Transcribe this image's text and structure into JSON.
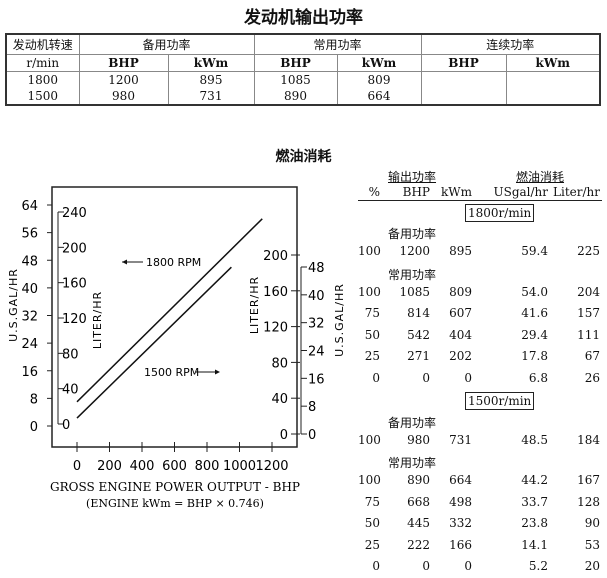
{
  "title": "发动机输出功率",
  "output_table": {
    "speed_header": "发动机转速",
    "speed_unit": "r/min",
    "groups": [
      "备用功率",
      "常用功率",
      "连续功率"
    ],
    "sub": [
      "BHP",
      "kWm",
      "BHP",
      "kWm",
      "BHP",
      "kWm"
    ],
    "rows": [
      [
        "1800",
        "1200",
        "895",
        "1085",
        "809",
        "",
        ""
      ],
      [
        "1500",
        "980",
        "731",
        "890",
        "664",
        "",
        ""
      ]
    ]
  },
  "fuel_title": "燃油消耗",
  "fuel_table": {
    "group_output": "输出功率",
    "group_fuel": "燃油消耗",
    "cols": [
      "%",
      "BHP",
      "kWm",
      "USgal/hr",
      "Liter/hr"
    ],
    "sections": [
      {
        "speed": "1800r/min",
        "standby_label": "备用功率",
        "standby": [
          [
            "100",
            "1200",
            "895",
            "59.4",
            "225"
          ]
        ],
        "prime_label": "常用功率",
        "prime": [
          [
            "100",
            "1085",
            "809",
            "54.0",
            "204"
          ],
          [
            "75",
            "814",
            "607",
            "41.6",
            "157"
          ],
          [
            "50",
            "542",
            "404",
            "29.4",
            "111"
          ],
          [
            "25",
            "271",
            "202",
            "17.8",
            "67"
          ],
          [
            "0",
            "0",
            "0",
            "6.8",
            "26"
          ]
        ]
      },
      {
        "speed": "1500r/min",
        "standby_label": "备用功率",
        "standby": [
          [
            "100",
            "980",
            "731",
            "48.5",
            "184"
          ]
        ],
        "prime_label": "常用功率",
        "prime": [
          [
            "100",
            "890",
            "664",
            "44.2",
            "167"
          ],
          [
            "75",
            "668",
            "498",
            "33.7",
            "128"
          ],
          [
            "50",
            "445",
            "332",
            "23.8",
            "90"
          ],
          [
            "25",
            "222",
            "166",
            "14.1",
            "53"
          ],
          [
            "0",
            "0",
            "0",
            "5.2",
            "20"
          ]
        ]
      }
    ]
  },
  "chart_data": {
    "type": "line",
    "xlabel": "GROSS ENGINE POWER OUTPUT - BHP",
    "xlabel2": "(ENGINE  kWm = BHP  ×  0.746)",
    "x_ticks": [
      0,
      200,
      400,
      600,
      800,
      1000,
      1200
    ],
    "left_gal_label": "U.S.GAL/HR",
    "left_gal_ticks": [
      0,
      8,
      16,
      24,
      32,
      40,
      48,
      56,
      64
    ],
    "left_liter_label": "LITER/HR",
    "left_liter_ticks": [
      0,
      40,
      80,
      120,
      160,
      200,
      240
    ],
    "right_liter_label": "LITER/HR",
    "right_liter_ticks": [
      0,
      40,
      80,
      120,
      160,
      200
    ],
    "right_gal_label": "U.S.GAL/HR",
    "right_gal_ticks": [
      0,
      8,
      16,
      24,
      32,
      40,
      48
    ],
    "series": [
      {
        "name": "1800 RPM",
        "x": [
          0,
          1140
        ],
        "y": [
          7,
          60
        ]
      },
      {
        "name": "1500 RPM",
        "x": [
          0,
          950
        ],
        "y": [
          2.3,
          46
        ]
      }
    ],
    "annotations": [
      "1800 RPM",
      "1500 RPM"
    ]
  }
}
